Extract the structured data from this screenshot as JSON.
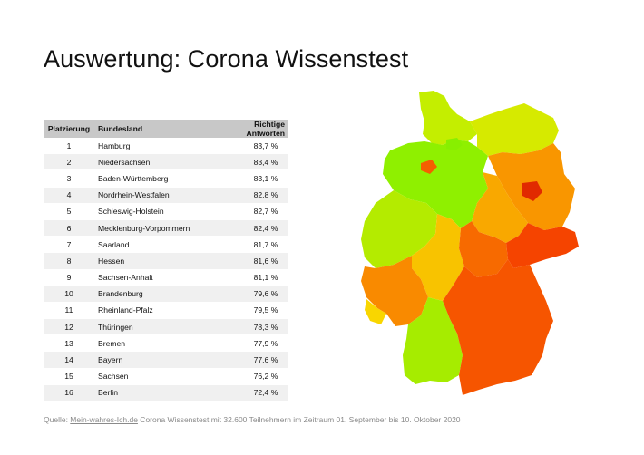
{
  "title": "Auswertung: Corona Wissenstest",
  "chart_data": {
    "type": "table",
    "columns": [
      "Platzierung",
      "Bundesland",
      "Richtige Antworten"
    ],
    "rows": [
      {
        "rank": "1",
        "state": "Hamburg",
        "value": "83,7 %",
        "num": 83.7,
        "color": "#88ef00"
      },
      {
        "rank": "2",
        "state": "Niedersachsen",
        "value": "83,4 %",
        "num": 83.4,
        "color": "#8ff000"
      },
      {
        "rank": "3",
        "state": "Baden-Württemberg",
        "value": "83,1 %",
        "num": 83.1,
        "color": "#a6ec00"
      },
      {
        "rank": "4",
        "state": "Nordrhein-Westfalen",
        "value": "82,8 %",
        "num": 82.8,
        "color": "#b4eb00"
      },
      {
        "rank": "5",
        "state": "Schleswig-Holstein",
        "value": "82,7 %",
        "num": 82.7,
        "color": "#c4ee00"
      },
      {
        "rank": "6",
        "state": "Mecklenburg-Vorpommern",
        "value": "82,4 %",
        "num": 82.4,
        "color": "#d6ea00"
      },
      {
        "rank": "7",
        "state": "Saarland",
        "value": "81,7 %",
        "num": 81.7,
        "color": "#f9d600"
      },
      {
        "rank": "8",
        "state": "Hessen",
        "value": "81,6 %",
        "num": 81.6,
        "color": "#f8c300"
      },
      {
        "rank": "9",
        "state": "Sachsen-Anhalt",
        "value": "81,1 %",
        "num": 81.1,
        "color": "#f9a800"
      },
      {
        "rank": "10",
        "state": "Brandenburg",
        "value": "79,6 %",
        "num": 79.6,
        "color": "#f99600"
      },
      {
        "rank": "11",
        "state": "Rheinland-Pfalz",
        "value": "79,5 %",
        "num": 79.5,
        "color": "#f98a00"
      },
      {
        "rank": "12",
        "state": "Thüringen",
        "value": "78,3 %",
        "num": 78.3,
        "color": "#f76a00"
      },
      {
        "rank": "13",
        "state": "Bremen",
        "value": "77,9 %",
        "num": 77.9,
        "color": "#f45f00"
      },
      {
        "rank": "14",
        "state": "Bayern",
        "value": "77,6 %",
        "num": 77.6,
        "color": "#f65500"
      },
      {
        "rank": "15",
        "state": "Sachsen",
        "value": "76,2 %",
        "num": 76.2,
        "color": "#f54400"
      },
      {
        "rank": "16",
        "state": "Berlin",
        "value": "72,4 %",
        "num": 72.4,
        "color": "#e12a00"
      }
    ]
  },
  "source": {
    "prefix": "Quelle: ",
    "link": "Mein-wahres-Ich.de",
    "text": " Corona Wissenstest mit 32.600 Teilnehmern im Zeitraum 01. September bis 10. Oktober 2020"
  }
}
